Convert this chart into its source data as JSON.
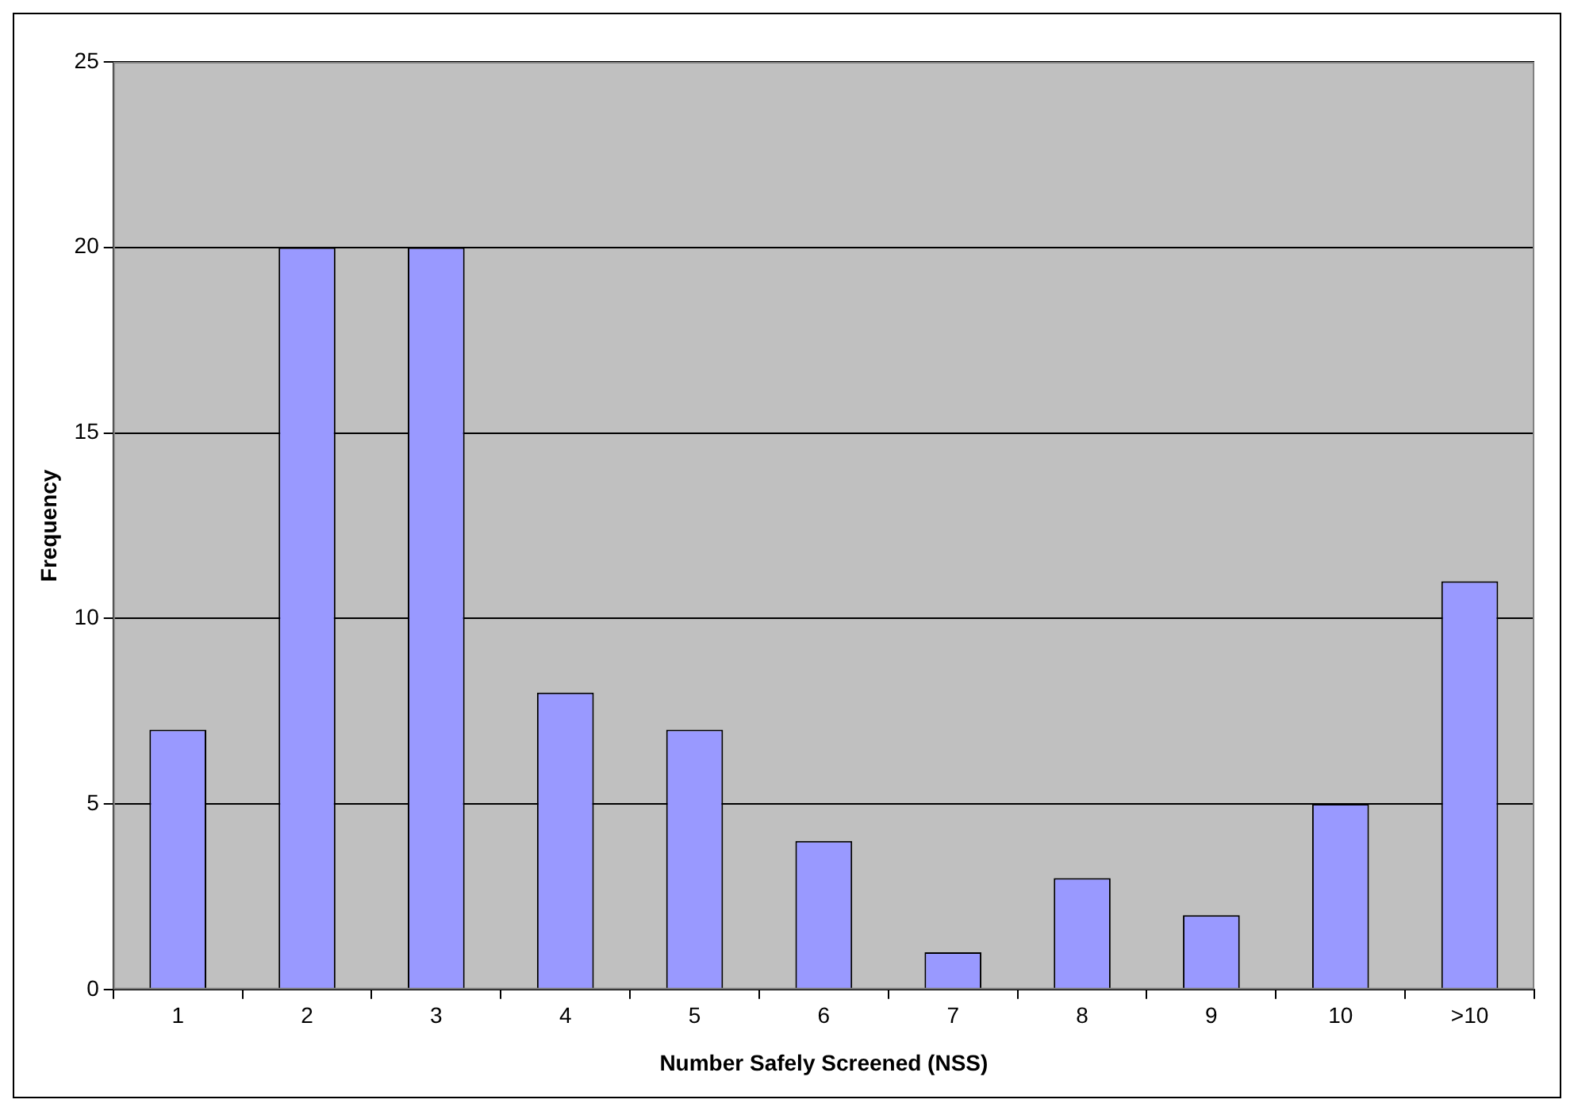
{
  "chart_data": {
    "type": "bar",
    "xlabel": "Number Safely Screened (NSS)",
    "ylabel": "Frequency",
    "categories": [
      "1",
      "2",
      "3",
      "4",
      "5",
      "6",
      "7",
      "8",
      "9",
      "10",
      ">10"
    ],
    "values": [
      7,
      20,
      20,
      8,
      7,
      4,
      1,
      3,
      2,
      5,
      11
    ],
    "color": "#9999ff",
    "ylim": [
      0,
      25
    ],
    "yticks": [
      0,
      5,
      10,
      15,
      20,
      25
    ],
    "grid": "y",
    "legend": false
  }
}
